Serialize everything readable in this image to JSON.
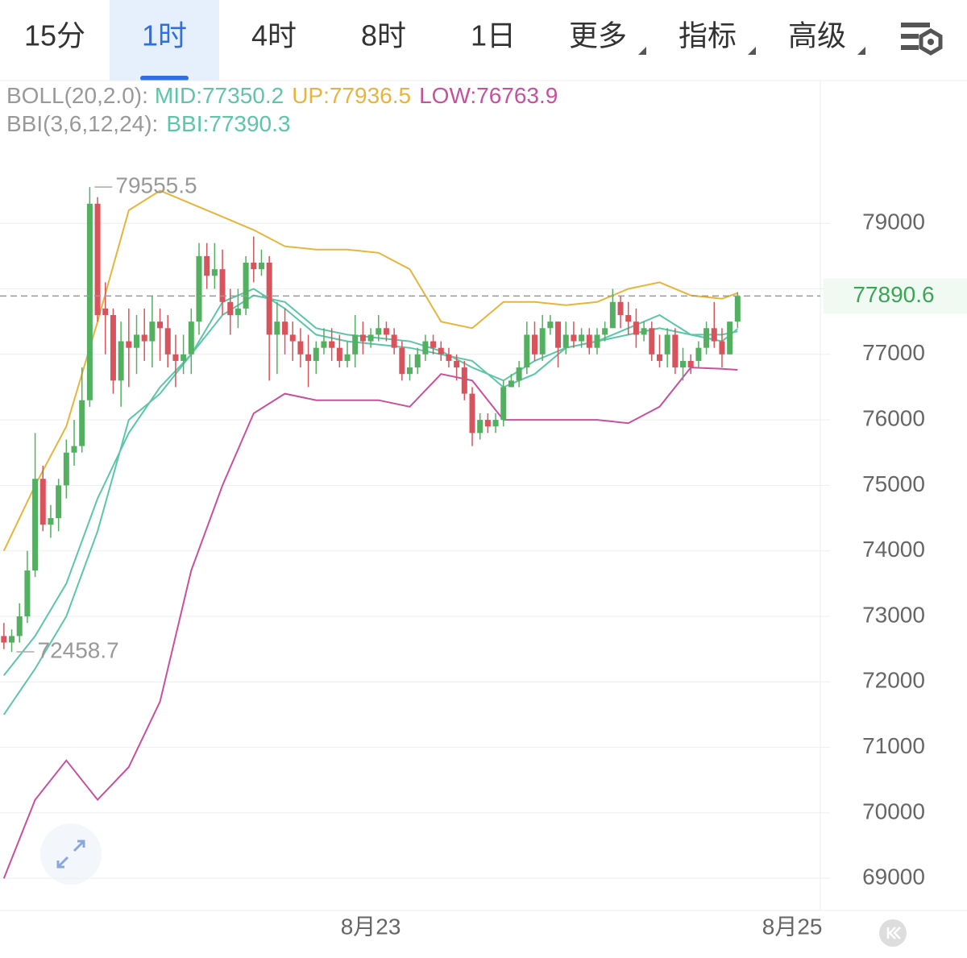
{
  "tabs": [
    "15分",
    "1时",
    "4时",
    "8时",
    "1日"
  ],
  "menus": [
    "更多",
    "指标",
    "高级"
  ],
  "active_tab": 1,
  "indicators": {
    "boll": {
      "name": "BOLL(20,2.0):",
      "mid": "MID:77350.2",
      "up": "UP:77936.5",
      "low": "LOW:76763.9"
    },
    "bbi": {
      "name": "BBI(3,6,12,24):",
      "value": "BBI:77390.3"
    }
  },
  "chart": {
    "type": "candlestick",
    "ylim": [
      68510,
      81180
    ],
    "yticks": [
      69000,
      70000,
      71000,
      72000,
      73000,
      74000,
      75000,
      76000,
      77000,
      78000,
      79000
    ],
    "xlim": [
      -0.5,
      104.6
    ],
    "xticks": [
      {
        "value": 47,
        "label": "8月23"
      },
      {
        "value": 101,
        "label": "8月25"
      }
    ],
    "colors": {
      "up": "#52b060",
      "down": "#d9535c"
    },
    "candles": {
      "open": [
        72700,
        72600,
        72700,
        73000,
        73700,
        75100,
        74400,
        74500,
        75000,
        75500,
        75600,
        76300,
        79300,
        77700,
        77600,
        76600,
        77200,
        77100,
        77300,
        77200,
        77500,
        77400,
        77000,
        76900,
        77000,
        77500,
        78500,
        78200,
        78300,
        77800,
        77600,
        77700,
        78400,
        78300,
        78400,
        77300,
        77500,
        77300,
        77200,
        77000,
        76900,
        77100,
        77200,
        77100,
        76900,
        77000,
        77300,
        77200,
        77300,
        77400,
        77300,
        77100,
        76700,
        76800,
        77000,
        77200,
        77100,
        77000,
        76900,
        76800,
        76400,
        75800,
        76000,
        75900,
        76000,
        76500,
        76600,
        76800,
        77300,
        77000,
        77400,
        77500,
        77100,
        77300,
        77200,
        77300,
        77100,
        77300,
        77400,
        77800,
        77600,
        77500,
        77300,
        77400,
        77000,
        77000,
        77300,
        76800,
        76900,
        76900,
        77100,
        77400,
        77200,
        77000,
        77500
      ],
      "high": [
        72900,
        72800,
        73200,
        74000,
        75800,
        75300,
        74700,
        75100,
        75700,
        76000,
        76800,
        79555.5,
        79400,
        78100,
        77700,
        77500,
        77700,
        77600,
        77700,
        77900,
        77700,
        77600,
        77300,
        77300,
        77700,
        78700,
        78700,
        78700,
        78600,
        78000,
        78000,
        78500,
        78800,
        78600,
        78500,
        77800,
        77700,
        77500,
        77400,
        77300,
        77200,
        77400,
        77400,
        77300,
        77200,
        77600,
        77500,
        77400,
        77600,
        77500,
        77400,
        77200,
        77000,
        77100,
        77300,
        77300,
        77200,
        77100,
        77000,
        76900,
        76500,
        76100,
        76100,
        76100,
        76600,
        76700,
        76900,
        77500,
        77500,
        77600,
        77600,
        77500,
        77500,
        77500,
        77400,
        77400,
        77400,
        77500,
        78000,
        77900,
        77800,
        77700,
        77500,
        77500,
        77300,
        77400,
        77400,
        77100,
        77000,
        77200,
        77500,
        77800,
        77400,
        77500,
        77950
      ],
      "low": [
        72500,
        72458.7,
        72600,
        72900,
        73600,
        74300,
        74200,
        74300,
        74800,
        75300,
        75500,
        76200,
        77500,
        77000,
        76400,
        76200,
        76500,
        76700,
        76900,
        76800,
        76900,
        76800,
        76500,
        76700,
        76700,
        77300,
        78000,
        78000,
        77600,
        77300,
        77400,
        77600,
        78100,
        78200,
        76600,
        76700,
        77000,
        76900,
        76800,
        76500,
        76700,
        77000,
        76900,
        76800,
        76800,
        76800,
        77000,
        77100,
        77200,
        77200,
        77000,
        76600,
        76600,
        76700,
        76900,
        77000,
        76900,
        76800,
        76600,
        76300,
        75600,
        75700,
        75800,
        75800,
        75900,
        76500,
        76500,
        76700,
        76900,
        76900,
        77300,
        76800,
        77000,
        77100,
        77100,
        77000,
        77000,
        77200,
        77400,
        77400,
        77300,
        77100,
        77200,
        76900,
        76800,
        76800,
        76700,
        76600,
        76700,
        76800,
        77000,
        77100,
        76800,
        77000,
        77400
      ],
      "close": [
        72600,
        72700,
        73000,
        73700,
        75100,
        74400,
        74500,
        75000,
        75500,
        75600,
        76300,
        79300,
        77600,
        77600,
        76600,
        77200,
        77100,
        77300,
        77200,
        77500,
        77400,
        77000,
        76900,
        77000,
        77500,
        78500,
        78200,
        78300,
        77800,
        77600,
        77700,
        78400,
        78300,
        78400,
        77300,
        77500,
        77300,
        77200,
        77000,
        76900,
        77100,
        77200,
        77100,
        76900,
        77000,
        77300,
        77200,
        77300,
        77400,
        77300,
        77100,
        76700,
        76800,
        77000,
        77200,
        77100,
        77000,
        76900,
        76800,
        76400,
        75800,
        76000,
        75900,
        76000,
        76500,
        76600,
        76800,
        77300,
        77000,
        77400,
        77500,
        77100,
        77300,
        77200,
        77300,
        77100,
        77300,
        77400,
        77800,
        77600,
        77500,
        77300,
        77400,
        77000,
        76900,
        77300,
        76800,
        76900,
        76800,
        77100,
        77400,
        77200,
        77000,
        77500,
        77890.6
      ]
    },
    "line_x": [
      0,
      4,
      8,
      12,
      16,
      20,
      24,
      28,
      32,
      36,
      40,
      44,
      48,
      52,
      56,
      60,
      64,
      68,
      72,
      76,
      80,
      84,
      88,
      92,
      94
    ],
    "lines": [
      {
        "color": "#e8b43a",
        "values": [
          74000,
          75000,
          75900,
          77500,
          79200,
          79500,
          79300,
          79100,
          78900,
          78650,
          78600,
          78600,
          78550,
          78300,
          77500,
          77400,
          77800,
          77800,
          77750,
          77800,
          78000,
          78100,
          77900,
          77850,
          77936.5
        ]
      },
      {
        "color": "#5cc6a8",
        "values": [
          72100,
          72700,
          73500,
          74800,
          75800,
          76500,
          77000,
          77600,
          77900,
          77800,
          77400,
          77300,
          77250,
          77200,
          77050,
          76800,
          76600,
          76900,
          77100,
          77200,
          77300,
          77400,
          77300,
          77300,
          77350.2
        ]
      },
      {
        "color": "#c8509e",
        "values": [
          69000,
          70200,
          70800,
          70200,
          70700,
          71700,
          73700,
          75000,
          76100,
          76400,
          76300,
          76300,
          76300,
          76200,
          76700,
          76600,
          76000,
          76000,
          76000,
          76000,
          75950,
          76200,
          76800,
          76780,
          76763.9
        ]
      },
      {
        "color": "#5cc6a8",
        "values": [
          71500,
          72200,
          73000,
          74300,
          76000,
          76400,
          77000,
          77800,
          78000,
          77700,
          77300,
          77200,
          77150,
          77100,
          77000,
          76900,
          76500,
          76700,
          77100,
          77200,
          77400,
          77600,
          77300,
          77200,
          77390.3
        ]
      }
    ],
    "last_price": 77890.6,
    "last_price_color": "#3aa655",
    "high_marker": {
      "index": 11,
      "value": 79555.5
    },
    "low_marker": {
      "index": 1,
      "value": 72458.7
    }
  }
}
